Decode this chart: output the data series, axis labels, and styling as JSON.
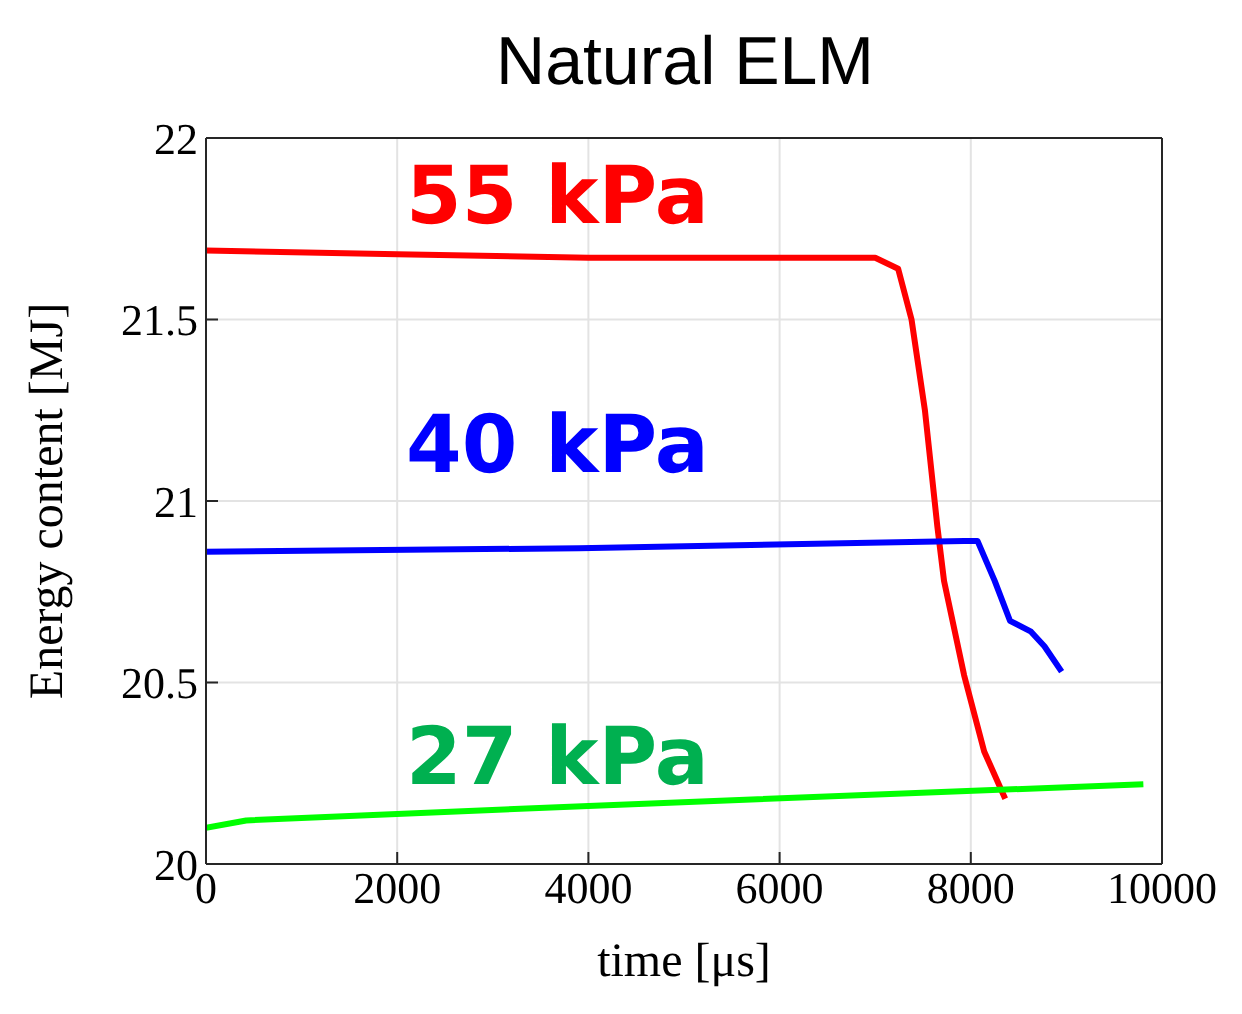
{
  "chart_data": {
    "type": "line",
    "title": "Natural ELM",
    "xlabel": "time [μs]",
    "ylabel": "Energy content [MJ]",
    "xlim": [
      0,
      10000
    ],
    "xticks": [
      0,
      2000,
      4000,
      6000,
      8000,
      10000
    ],
    "ylim": [
      20,
      22
    ],
    "yticks": [
      20,
      20.5,
      21,
      21.5,
      22
    ],
    "grid": true,
    "legend": false,
    "marker": "none",
    "line_style": "solid",
    "series": [
      {
        "name": "55 kPa",
        "color": "#ff0000",
        "x": [
          0,
          2000,
          4000,
          7000,
          7240,
          7380,
          7520,
          7650,
          7720,
          7930,
          8140,
          8360
        ],
        "values": [
          21.69,
          21.68,
          21.67,
          21.67,
          21.64,
          21.5,
          21.25,
          20.93,
          20.78,
          20.52,
          20.31,
          20.18
        ]
      },
      {
        "name": "40 kPa",
        "color": "#0000ff",
        "x": [
          0,
          3900,
          7930,
          8070,
          8250,
          8410,
          8630,
          8770,
          8950
        ],
        "values": [
          20.86,
          20.87,
          20.89,
          20.89,
          20.78,
          20.67,
          20.64,
          20.6,
          20.53
        ]
      },
      {
        "name": "27 kPa",
        "color": "#00ff00",
        "x": [
          0,
          420,
          4000,
          9805
        ],
        "values": [
          20.1,
          20.12,
          20.16,
          20.22
        ]
      }
    ]
  }
}
